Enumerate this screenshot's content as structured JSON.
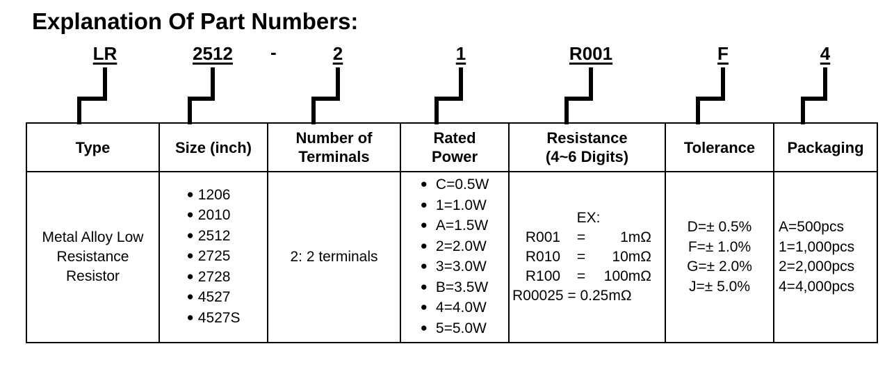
{
  "title": "Explanation Of Part Numbers:",
  "part_number": {
    "codes": [
      "LR",
      "2512",
      "2",
      "1",
      "R001",
      "F",
      "4"
    ],
    "separator": "-"
  },
  "table": {
    "headers": {
      "type": "Type",
      "size": "Size (inch)",
      "terminals_line1": "Number of",
      "terminals_line2": "Terminals",
      "power_line1": "Rated",
      "power_line2": "Power",
      "resistance_line1": "Resistance",
      "resistance_line2": "(4~6 Digits)",
      "tolerance": "Tolerance",
      "packaging": "Packaging"
    },
    "type_lines": [
      "Metal Alloy Low",
      "Resistance",
      "Resistor"
    ],
    "sizes": [
      "1206",
      "2010",
      "2512",
      "2725",
      "2728",
      "4527",
      "4527S"
    ],
    "terminals": "2: 2 terminals",
    "power": [
      "C=0.5W",
      "1=1.0W",
      "A=1.5W",
      "2=2.0W",
      "3=3.0W",
      "B=3.5W",
      "4=4.0W",
      "5=5.0W"
    ],
    "resistance": {
      "example_label": "EX:",
      "rows": [
        {
          "code": "R001",
          "eq": "=",
          "value": "1mΩ"
        },
        {
          "code": "R010",
          "eq": "=",
          "value": "10mΩ"
        },
        {
          "code": "R100",
          "eq": "=",
          "value": "100mΩ"
        }
      ],
      "last_row": "R00025 = 0.25mΩ"
    },
    "tolerance": [
      "D=± 0.5%",
      "F=± 1.0%",
      "G=± 2.0%",
      "J=± 5.0%"
    ],
    "packaging": [
      "A=500pcs",
      "1=1,000pcs",
      "2=2,000pcs",
      "4=4,000pcs"
    ]
  }
}
